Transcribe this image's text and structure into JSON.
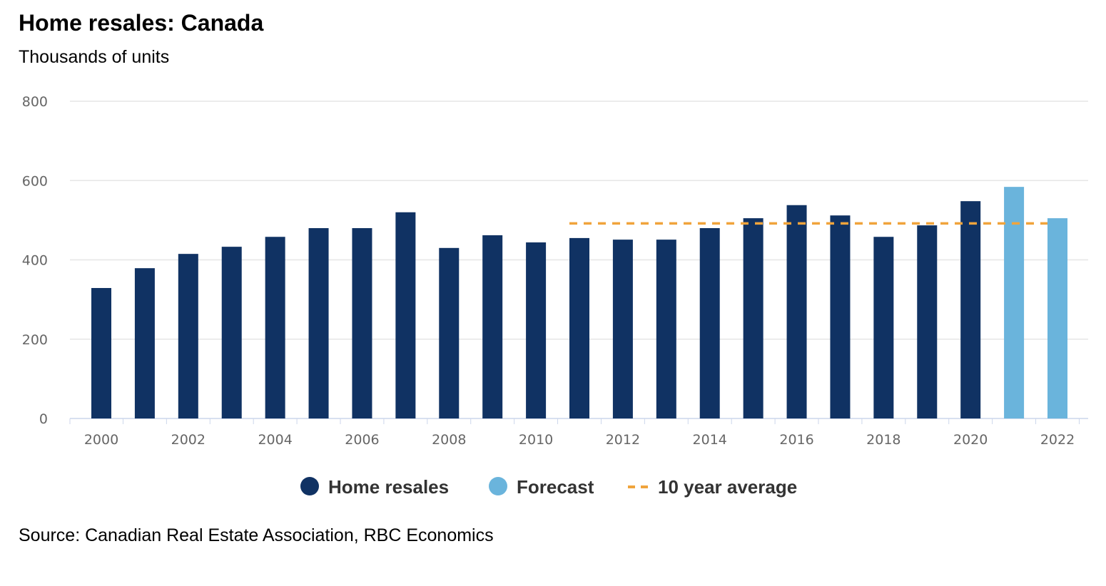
{
  "chart_data": {
    "type": "bar",
    "title": "Home resales: Canada",
    "subtitle": "Thousands of units",
    "source": "Source: Canadian Real Estate Association, RBC Economics",
    "categories": [
      "2000",
      "2001",
      "2002",
      "2003",
      "2004",
      "2005",
      "2006",
      "2007",
      "2008",
      "2009",
      "2010",
      "2011",
      "2012",
      "2013",
      "2014",
      "2015",
      "2016",
      "2017",
      "2018",
      "2019",
      "2020",
      "2021",
      "2022"
    ],
    "x_tick_labels": [
      "2000",
      "2002",
      "2004",
      "2006",
      "2008",
      "2010",
      "2012",
      "2014",
      "2016",
      "2018",
      "2020",
      "2022"
    ],
    "y_tick_labels": [
      "0",
      "200",
      "400",
      "600",
      "800"
    ],
    "ylim": [
      0,
      800
    ],
    "grid": true,
    "legend_position": "bottom",
    "series": [
      {
        "name": "Home resales",
        "color": "#103263",
        "values": [
          329,
          379,
          415,
          433,
          458,
          480,
          480,
          520,
          430,
          462,
          444,
          455,
          451,
          451,
          480,
          505,
          538,
          512,
          458,
          487,
          548,
          null,
          null
        ]
      },
      {
        "name": "Forecast",
        "color": "#6ab4dc",
        "values": [
          null,
          null,
          null,
          null,
          null,
          null,
          null,
          null,
          null,
          null,
          null,
          null,
          null,
          null,
          null,
          null,
          null,
          null,
          null,
          null,
          null,
          584,
          505
        ]
      },
      {
        "name": "10 year average",
        "type": "line",
        "style": "dashed",
        "color": "#f0a43c",
        "x_range": [
          "2011",
          "2022"
        ],
        "value": 492
      }
    ]
  }
}
